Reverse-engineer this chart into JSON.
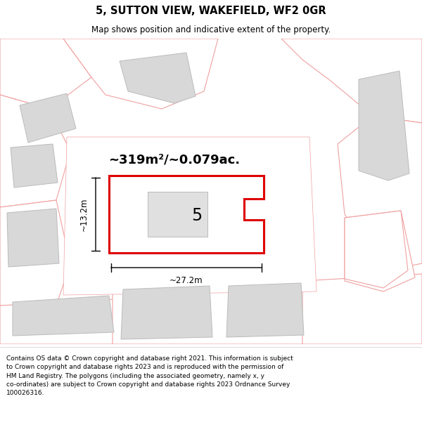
{
  "title": "5, SUTTON VIEW, WAKEFIELD, WF2 0GR",
  "subtitle": "Map shows position and indicative extent of the property.",
  "area_label": "~319m²/~0.079ac.",
  "width_label": "~27.2m",
  "height_label": "~13.2m",
  "plot_number": "5",
  "footer": "Contains OS data © Crown copyright and database right 2021. This information is subject\nto Crown copyright and database rights 2023 and is reproduced with the permission of\nHM Land Registry. The polygons (including the associated geometry, namely x, y\nco-ordinates) are subject to Crown copyright and database rights 2023 Ordnance Survey\n100026316.",
  "bg_color": "#ffffff",
  "light_red": "#f0a0a0",
  "main_red": "#dd0000",
  "gray_fill": "#d8d8d8",
  "white": "#ffffff"
}
